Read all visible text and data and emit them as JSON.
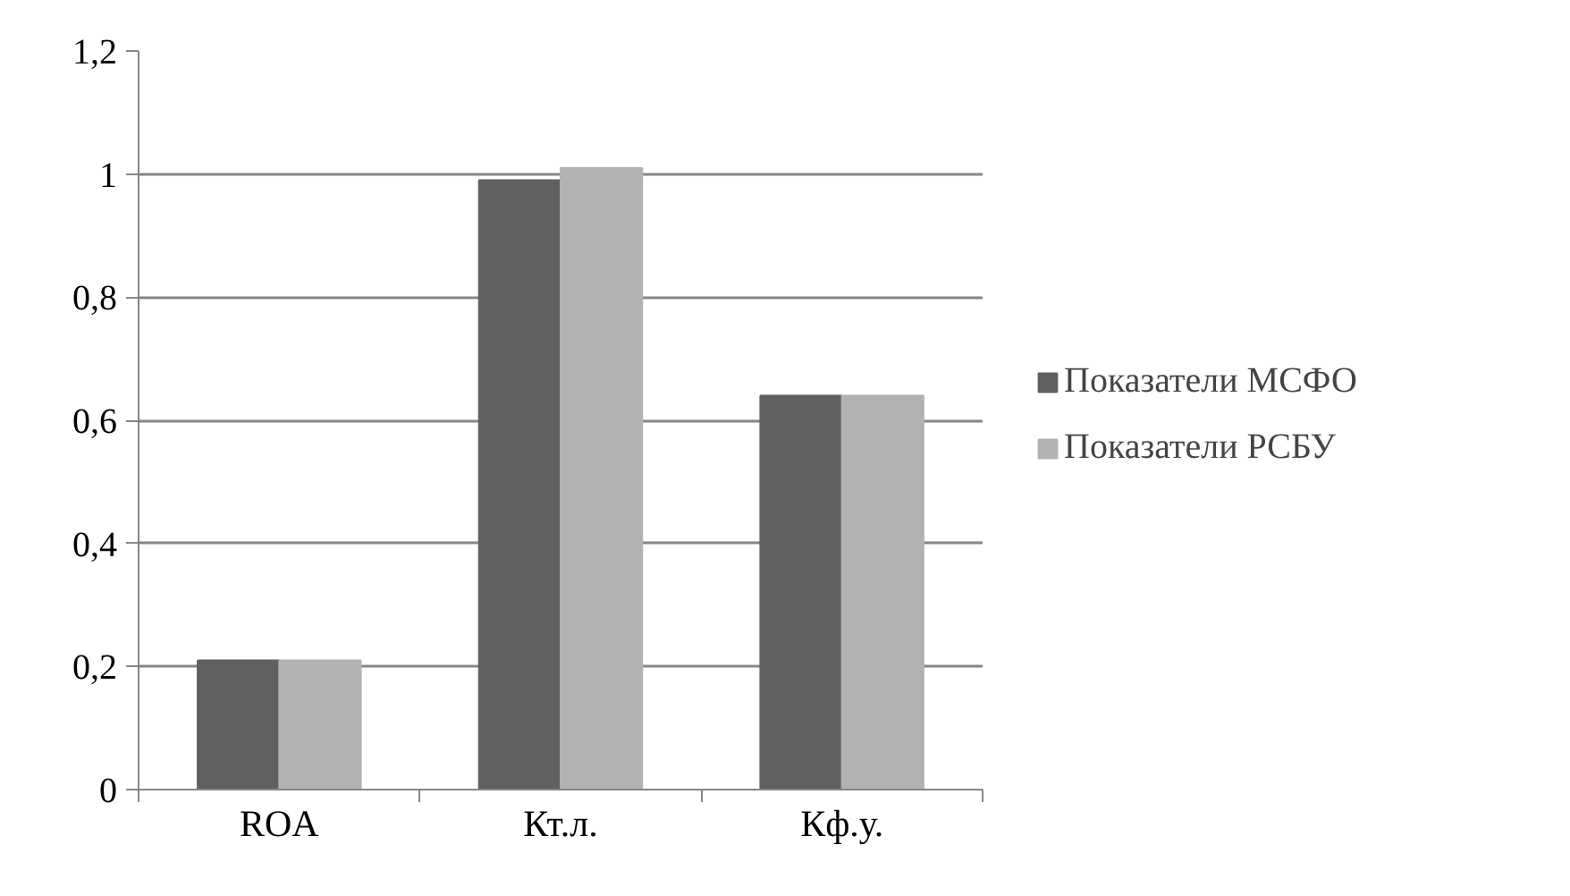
{
  "chart_data": {
    "type": "bar",
    "categories": [
      "ROA",
      "Кт.л.",
      "Кф.у."
    ],
    "series": [
      {
        "name": "Показатели МСФО",
        "color": "#606060",
        "values": [
          0.21,
          0.99,
          0.64
        ]
      },
      {
        "name": "Показатели РСБУ",
        "color": "#b2b2b2",
        "values": [
          0.21,
          1.01,
          0.64
        ]
      }
    ],
    "ylim": [
      0,
      1.2
    ],
    "yticks": [
      {
        "value": 0,
        "label": "0"
      },
      {
        "value": 0.2,
        "label": "0,2"
      },
      {
        "value": 0.4,
        "label": "0,4"
      },
      {
        "value": 0.6,
        "label": "0,6"
      },
      {
        "value": 0.8,
        "label": "0,8"
      },
      {
        "value": 1,
        "label": "1"
      },
      {
        "value": 1.2,
        "label": "1,2"
      }
    ],
    "grid": "y",
    "legend": "right"
  }
}
